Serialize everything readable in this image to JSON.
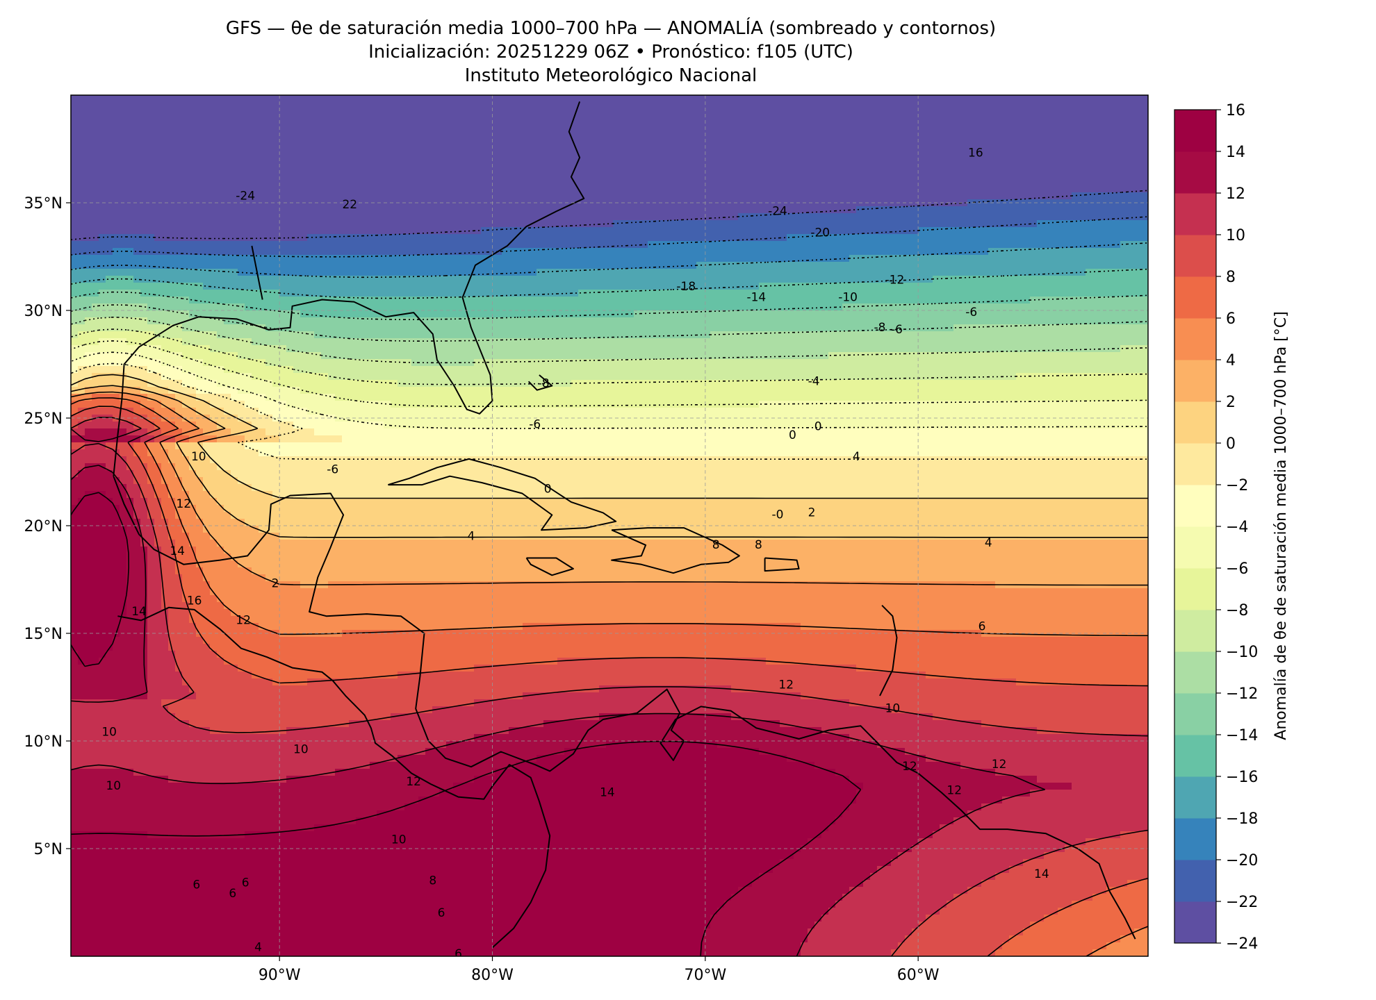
{
  "header": {
    "title_line1": "GFS — θe de saturación media 1000–700 hPa — ANOMALÍA (sombreado y contornos)",
    "title_line2": "Inicialización: 20251229 06Z   •   Pronóstico: f105 (UTC)",
    "title_line3": "Instituto Meteorológico Nacional"
  },
  "map": {
    "extent": {
      "lon_min": -99.8,
      "lon_max": -49.2,
      "lat_min": 0.0,
      "lat_max": 40.0
    },
    "lat_ticks": [
      {
        "value": 35,
        "label": "35°N"
      },
      {
        "value": 30,
        "label": "30°N"
      },
      {
        "value": 25,
        "label": "25°N"
      },
      {
        "value": 20,
        "label": "20°N"
      },
      {
        "value": 15,
        "label": "15°N"
      },
      {
        "value": 10,
        "label": "10°N"
      },
      {
        "value": 5,
        "label": "5°N"
      }
    ],
    "lon_ticks": [
      {
        "value": -90,
        "label": "90°W"
      },
      {
        "value": -80,
        "label": "80°W"
      },
      {
        "value": -70,
        "label": "70°W"
      },
      {
        "value": -60,
        "label": "60°W"
      }
    ],
    "contour_labels": [
      {
        "text": "-24",
        "lon": -91.6,
        "lat": 35.3
      },
      {
        "text": "22",
        "lon": -86.7,
        "lat": 34.9
      },
      {
        "text": "-24",
        "lon": -66.6,
        "lat": 34.6
      },
      {
        "text": "-20",
        "lon": -64.6,
        "lat": 33.6
      },
      {
        "text": "16",
        "lon": -57.3,
        "lat": 37.3
      },
      {
        "text": "-18",
        "lon": -70.9,
        "lat": 31.1
      },
      {
        "text": "-14",
        "lon": -67.6,
        "lat": 30.6
      },
      {
        "text": "-12",
        "lon": -61.1,
        "lat": 31.4
      },
      {
        "text": "-10",
        "lon": -63.3,
        "lat": 30.6
      },
      {
        "text": "-8",
        "lon": -61.8,
        "lat": 29.2
      },
      {
        "text": "-6",
        "lon": -61.0,
        "lat": 29.1
      },
      {
        "text": "-6",
        "lon": -57.5,
        "lat": 29.9
      },
      {
        "text": "-8",
        "lon": -77.6,
        "lat": 26.6
      },
      {
        "text": "-4",
        "lon": -64.9,
        "lat": 26.7
      },
      {
        "text": "-6",
        "lon": -78.0,
        "lat": 24.7
      },
      {
        "text": "0",
        "lon": -65.9,
        "lat": 24.2
      },
      {
        "text": "0",
        "lon": -64.7,
        "lat": 24.6
      },
      {
        "text": "4",
        "lon": -62.9,
        "lat": 23.2
      },
      {
        "text": "-6",
        "lon": -87.5,
        "lat": 22.6
      },
      {
        "text": "0",
        "lon": -77.4,
        "lat": 21.7
      },
      {
        "text": "-0",
        "lon": -66.6,
        "lat": 20.5
      },
      {
        "text": "2",
        "lon": -65.0,
        "lat": 20.6
      },
      {
        "text": "4",
        "lon": -81.0,
        "lat": 19.5
      },
      {
        "text": "8",
        "lon": -69.5,
        "lat": 19.1
      },
      {
        "text": "8",
        "lon": -67.5,
        "lat": 19.1
      },
      {
        "text": "4",
        "lon": -56.7,
        "lat": 19.2
      },
      {
        "text": "2",
        "lon": -90.2,
        "lat": 17.3
      },
      {
        "text": "6",
        "lon": -57.0,
        "lat": 15.3
      },
      {
        "text": "10",
        "lon": -93.8,
        "lat": 23.2
      },
      {
        "text": "12",
        "lon": -94.5,
        "lat": 21.0
      },
      {
        "text": "14",
        "lon": -94.8,
        "lat": 18.8
      },
      {
        "text": "16",
        "lon": -94.0,
        "lat": 16.5
      },
      {
        "text": "14",
        "lon": -96.6,
        "lat": 16.0
      },
      {
        "text": "12",
        "lon": -91.7,
        "lat": 15.6
      },
      {
        "text": "12",
        "lon": -66.2,
        "lat": 12.6
      },
      {
        "text": "10",
        "lon": -61.2,
        "lat": 11.5
      },
      {
        "text": "10",
        "lon": -98.0,
        "lat": 10.4
      },
      {
        "text": "10",
        "lon": -89.0,
        "lat": 9.6
      },
      {
        "text": "10",
        "lon": -97.8,
        "lat": 7.9
      },
      {
        "text": "12",
        "lon": -83.7,
        "lat": 8.1
      },
      {
        "text": "12",
        "lon": -60.4,
        "lat": 8.8
      },
      {
        "text": "12",
        "lon": -56.2,
        "lat": 8.9
      },
      {
        "text": "12",
        "lon": -58.3,
        "lat": 7.7
      },
      {
        "text": "14",
        "lon": -74.6,
        "lat": 7.6
      },
      {
        "text": "10",
        "lon": -84.4,
        "lat": 5.4
      },
      {
        "text": "8",
        "lon": -82.8,
        "lat": 3.5
      },
      {
        "text": "6",
        "lon": -93.9,
        "lat": 3.3
      },
      {
        "text": "6",
        "lon": -91.6,
        "lat": 3.4
      },
      {
        "text": "6",
        "lon": -92.2,
        "lat": 2.9
      },
      {
        "text": "6",
        "lon": -82.4,
        "lat": 2.0
      },
      {
        "text": "4",
        "lon": -91.0,
        "lat": 0.4
      },
      {
        "text": "6",
        "lon": -81.6,
        "lat": 0.1
      },
      {
        "text": "14",
        "lon": -54.2,
        "lat": 3.8
      }
    ]
  },
  "colorbar": {
    "label": "Anomalía de θe de saturación media 1000–700 hPa [°C]",
    "min": -24,
    "max": 16,
    "step": 2,
    "ticks": [
      {
        "value": 16,
        "label": "16"
      },
      {
        "value": 14,
        "label": "14"
      },
      {
        "value": 12,
        "label": "12"
      },
      {
        "value": 10,
        "label": "10"
      },
      {
        "value": 8,
        "label": "8"
      },
      {
        "value": 6,
        "label": "6"
      },
      {
        "value": 4,
        "label": "4"
      },
      {
        "value": 2,
        "label": "2"
      },
      {
        "value": 0,
        "label": "0"
      },
      {
        "value": -2,
        "label": "−2"
      },
      {
        "value": -4,
        "label": "−4"
      },
      {
        "value": -6,
        "label": "−6"
      },
      {
        "value": -8,
        "label": "−8"
      },
      {
        "value": -10,
        "label": "−10"
      },
      {
        "value": -12,
        "label": "−12"
      },
      {
        "value": -14,
        "label": "−14"
      },
      {
        "value": -16,
        "label": "−16"
      },
      {
        "value": -18,
        "label": "−18"
      },
      {
        "value": -20,
        "label": "−20"
      },
      {
        "value": -22,
        "label": "−22"
      },
      {
        "value": -24,
        "label": "−24"
      }
    ],
    "colors": [
      "#5e4fa2",
      "#4261ae",
      "#3683bb",
      "#4fa6b2",
      "#66c2a5",
      "#89d0a4",
      "#acdea4",
      "#cfeca0",
      "#e7f59a",
      "#f5fbb0",
      "#fffebe",
      "#fee99e",
      "#fdd380",
      "#fcb166",
      "#f88e52",
      "#ee6a45",
      "#dc4e4b",
      "#c53050",
      "#a60b44",
      "#9e0142"
    ]
  }
}
